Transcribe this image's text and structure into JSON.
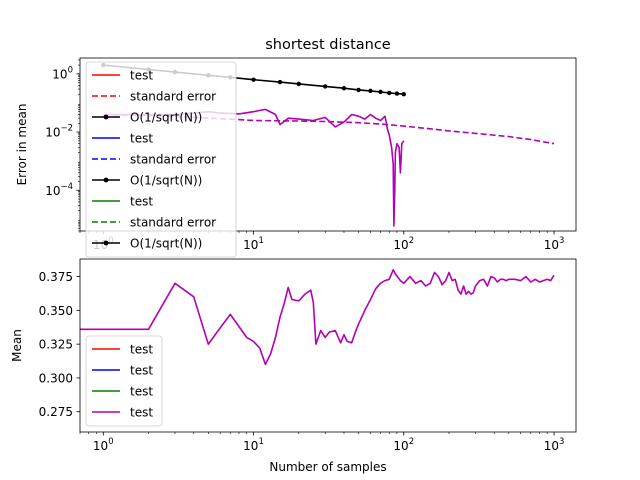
{
  "chart_data": [
    {
      "type": "line",
      "title": "shortest distance",
      "xlabel": "",
      "ylabel": "Error in mean",
      "xscale": "log",
      "yscale": "log",
      "xlim": [
        0.7,
        1400
      ],
      "ylim": [
        4e-06,
        3.5
      ],
      "x_ticks": [
        {
          "value": 1,
          "label": "10^0"
        },
        {
          "value": 10,
          "label": "10^1"
        },
        {
          "value": 100,
          "label": "10^2"
        },
        {
          "value": 1000,
          "label": "10^3"
        }
      ],
      "y_ticks": [
        {
          "value": 1,
          "label": "10^0"
        },
        {
          "value": 0.01,
          "label": "10^-2"
        },
        {
          "value": 0.0001,
          "label": "10^-4"
        }
      ],
      "legend_position": "upper-left",
      "legend": [
        {
          "label": "test",
          "color": "#ff0000",
          "style": "solid"
        },
        {
          "label": "standard error",
          "color": "#ff0000",
          "style": "dashed"
        },
        {
          "label": "O(1/sqrt(N))",
          "color": "#000000",
          "style": "solid-dot"
        },
        {
          "label": "test",
          "color": "#0000ff",
          "style": "solid"
        },
        {
          "label": "standard error",
          "color": "#0000ff",
          "style": "dashed"
        },
        {
          "label": "O(1/sqrt(N))",
          "color": "#000000",
          "style": "solid-dot"
        },
        {
          "label": "test",
          "color": "#008000",
          "style": "solid"
        },
        {
          "label": "standard error",
          "color": "#008000",
          "style": "dashed"
        },
        {
          "label": "O(1/sqrt(N))",
          "color": "#000000",
          "style": "solid-dot"
        }
      ],
      "series": [
        {
          "color": "#000000",
          "style": "solid-dot",
          "x": [
            1,
            2,
            3,
            5,
            7,
            10,
            15,
            20,
            30,
            40,
            50,
            60,
            70,
            80,
            90,
            100
          ],
          "y": [
            2.0,
            1.41,
            1.15,
            0.89,
            0.76,
            0.63,
            0.52,
            0.45,
            0.37,
            0.32,
            0.28,
            0.26,
            0.24,
            0.22,
            0.21,
            0.2
          ]
        },
        {
          "color": "#b400b4",
          "style": "solid",
          "x": [
            1,
            2,
            3,
            4,
            5,
            6,
            8,
            10,
            12,
            14,
            15,
            17,
            20,
            25,
            30,
            35,
            40,
            45,
            50,
            55,
            60,
            65,
            70,
            75,
            78,
            80,
            83,
            85,
            86,
            87,
            88,
            90,
            93,
            95,
            97,
            100
          ],
          "y": [
            0.04,
            0.04,
            0.04,
            0.045,
            0.05,
            0.045,
            0.042,
            0.05,
            0.06,
            0.04,
            0.018,
            0.03,
            0.028,
            0.025,
            0.032,
            0.015,
            0.022,
            0.04,
            0.035,
            0.028,
            0.04,
            0.03,
            0.025,
            0.035,
            0.012,
            0.008,
            0.003,
            0.0008,
            6e-06,
            8e-05,
            0.002,
            0.004,
            0.003,
            0.0004,
            0.004,
            0.005
          ]
        },
        {
          "color": "#b400b4",
          "style": "dashed",
          "x": [
            1,
            2,
            3,
            5,
            7,
            10,
            20,
            30,
            50,
            70,
            100,
            150,
            200,
            300,
            500,
            700,
            1000
          ],
          "y": [
            0.04,
            0.037,
            0.035,
            0.03,
            0.028,
            0.025,
            0.024,
            0.023,
            0.021,
            0.019,
            0.016,
            0.013,
            0.011,
            0.009,
            0.007,
            0.0055,
            0.004
          ]
        }
      ]
    },
    {
      "type": "line",
      "title": "",
      "xlabel": "Number of samples",
      "ylabel": "Mean",
      "xscale": "log",
      "yscale": "linear",
      "xlim": [
        0.7,
        1400
      ],
      "ylim": [
        0.26,
        0.388
      ],
      "x_ticks": [
        {
          "value": 1,
          "label": "10^0"
        },
        {
          "value": 10,
          "label": "10^1"
        },
        {
          "value": 100,
          "label": "10^2"
        },
        {
          "value": 1000,
          "label": "10^3"
        }
      ],
      "y_ticks": [
        {
          "value": 0.275,
          "label": "0.275"
        },
        {
          "value": 0.3,
          "label": "0.300"
        },
        {
          "value": 0.325,
          "label": "0.325"
        },
        {
          "value": 0.35,
          "label": "0.350"
        },
        {
          "value": 0.375,
          "label": "0.375"
        }
      ],
      "legend_position": "lower-left",
      "legend": [
        {
          "label": "test",
          "color": "#ff0000",
          "style": "solid"
        },
        {
          "label": "test",
          "color": "#0000ff",
          "style": "solid"
        },
        {
          "label": "test",
          "color": "#008000",
          "style": "solid"
        },
        {
          "label": "test",
          "color": "#b400b4",
          "style": "solid"
        }
      ],
      "series": [
        {
          "color": "#b400b4",
          "style": "solid",
          "x": [
            0.7,
            2,
            3,
            4,
            5,
            6,
            7,
            8,
            9,
            10,
            11,
            12,
            13,
            14,
            15,
            16,
            17,
            18,
            20,
            22,
            24,
            25,
            26,
            28,
            30,
            32,
            35,
            38,
            40,
            42,
            45,
            48,
            50,
            55,
            60,
            65,
            70,
            75,
            80,
            85,
            88,
            92,
            95,
            100,
            110,
            120,
            130,
            140,
            150,
            160,
            170,
            180,
            190,
            200,
            210,
            220,
            230,
            240,
            250,
            260,
            270,
            280,
            290,
            300,
            320,
            340,
            360,
            380,
            400,
            420,
            440,
            460,
            480,
            500,
            550,
            600,
            650,
            700,
            750,
            800,
            850,
            900,
            950,
            1000
          ],
          "y": [
            0.336,
            0.336,
            0.37,
            0.36,
            0.325,
            0.337,
            0.347,
            0.338,
            0.33,
            0.327,
            0.322,
            0.31,
            0.318,
            0.33,
            0.345,
            0.355,
            0.367,
            0.358,
            0.357,
            0.362,
            0.365,
            0.356,
            0.325,
            0.335,
            0.33,
            0.334,
            0.335,
            0.326,
            0.332,
            0.327,
            0.326,
            0.335,
            0.34,
            0.35,
            0.358,
            0.366,
            0.37,
            0.372,
            0.373,
            0.38,
            0.377,
            0.374,
            0.372,
            0.37,
            0.375,
            0.37,
            0.372,
            0.368,
            0.37,
            0.378,
            0.375,
            0.369,
            0.372,
            0.378,
            0.372,
            0.373,
            0.365,
            0.362,
            0.368,
            0.362,
            0.364,
            0.362,
            0.363,
            0.368,
            0.372,
            0.373,
            0.368,
            0.375,
            0.374,
            0.371,
            0.373,
            0.373,
            0.372,
            0.373,
            0.373,
            0.372,
            0.375,
            0.371,
            0.373,
            0.371,
            0.372,
            0.373,
            0.372,
            0.376
          ]
        }
      ]
    }
  ]
}
